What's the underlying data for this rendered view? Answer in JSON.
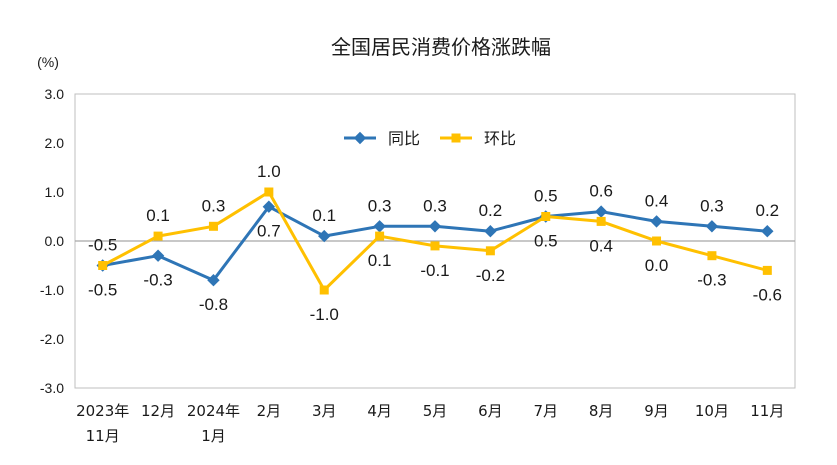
{
  "chart_data": {
    "type": "line",
    "title": "全国居民消费价格涨跌幅",
    "ylabel": "(%)",
    "ylim": [
      -3.0,
      3.0
    ],
    "yticks": [
      "3.0",
      "2.0",
      "1.0",
      "0.0",
      "-1.0",
      "-2.0",
      "-3.0"
    ],
    "grid": false,
    "legend": "top-center",
    "categories": [
      [
        "2023年",
        "11月"
      ],
      [
        "12月"
      ],
      [
        "2024年",
        "1月"
      ],
      [
        "2月"
      ],
      [
        "3月"
      ],
      [
        "4月"
      ],
      [
        "5月"
      ],
      [
        "6月"
      ],
      [
        "7月"
      ],
      [
        "8月"
      ],
      [
        "9月"
      ],
      [
        "10月"
      ],
      [
        "11月"
      ]
    ],
    "series": [
      {
        "name": "同比",
        "color": "#2E75B6",
        "marker": "diamond",
        "values": [
          -0.5,
          -0.3,
          -0.8,
          0.7,
          0.1,
          0.3,
          0.3,
          0.2,
          0.5,
          0.6,
          0.4,
          0.3,
          0.2
        ],
        "labels": [
          "-0.5",
          "-0.3",
          "-0.8",
          "0.7",
          "0.1",
          "0.3",
          "0.3",
          "0.2",
          "0.5",
          "0.6",
          "0.4",
          "0.3",
          "0.2"
        ]
      },
      {
        "name": "环比",
        "color": "#FFC000",
        "marker": "square",
        "values": [
          -0.5,
          0.1,
          0.3,
          1.0,
          -1.0,
          0.1,
          -0.1,
          -0.2,
          0.5,
          0.4,
          0.0,
          -0.3,
          -0.6
        ],
        "labels": [
          "-0.5",
          "0.1",
          "0.3",
          "1.0",
          "-1.0",
          "0.1",
          "-0.1",
          "-0.2",
          "0.5",
          "0.4",
          "0.0",
          "-0.3",
          "-0.6"
        ]
      }
    ]
  }
}
